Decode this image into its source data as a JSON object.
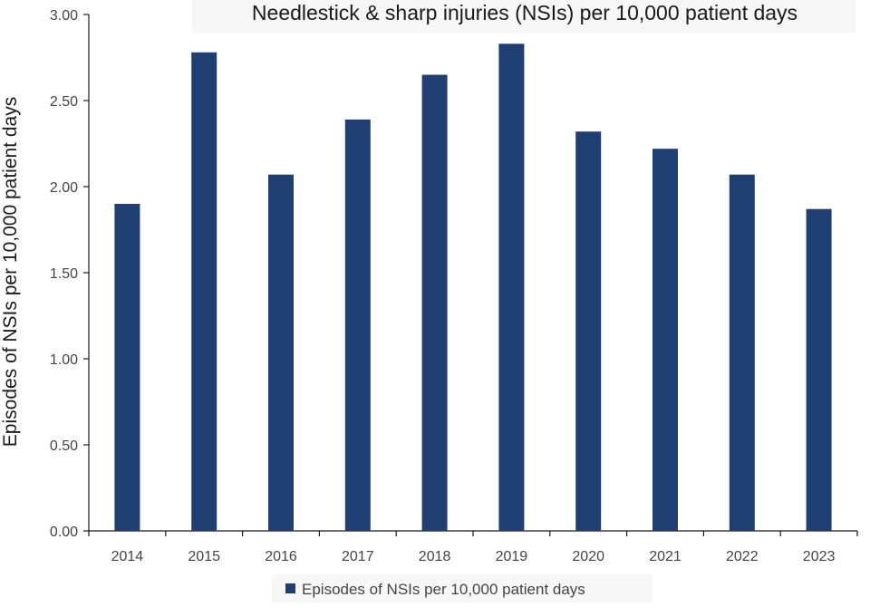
{
  "colors": {
    "bar": "#1f3f73",
    "axis": "#1a1a1a",
    "title_box": "#f7f7f7",
    "legend_box": "#f7f7f7"
  },
  "chart_data": {
    "type": "bar",
    "title": "Needlestick & sharp injuries (NSIs) per 10,000 patient days",
    "xlabel": "",
    "ylabel": "Episodes of NSIs per 10,000 patient days",
    "categories": [
      "2014",
      "2015",
      "2016",
      "2017",
      "2018",
      "2019",
      "2020",
      "2021",
      "2022",
      "2023"
    ],
    "series": [
      {
        "name": "Episodes of NSIs per 10,000 patient days",
        "values": [
          1.9,
          2.78,
          2.07,
          2.39,
          2.65,
          2.83,
          2.32,
          2.22,
          2.07,
          1.87
        ]
      }
    ],
    "ylim": [
      0,
      3
    ],
    "yticks": [
      "0.00",
      "0.50",
      "1.00",
      "1.50",
      "2.00",
      "2.50",
      "3.00"
    ],
    "grid": false,
    "legend_position": "bottom"
  }
}
